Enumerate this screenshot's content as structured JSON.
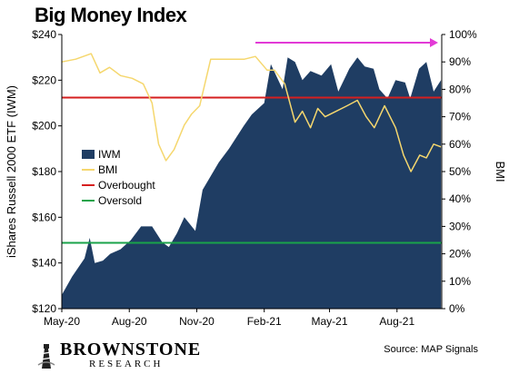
{
  "title": "Big Money Index",
  "brand": {
    "name": "BROWNSTONE",
    "sub": "RESEARCH"
  },
  "source": "Source: MAP Signals",
  "colors": {
    "iwm": "#1f3d63",
    "bmi": "#f5d76e",
    "overbought": "#d61f1f",
    "oversold": "#1aa34a",
    "arrow": "#e23ad6"
  },
  "chart_data": {
    "type": "area",
    "title": "Big Money Index",
    "x_ticks": [
      "May-20",
      "Aug-20",
      "Nov-20",
      "Feb-21",
      "May-21",
      "Aug-21"
    ],
    "x_range": [
      "2020-05-01",
      "2021-10-01"
    ],
    "y_left": {
      "label": "iShares Russell 2000 ETF (IWM)",
      "range": [
        120,
        240
      ],
      "ticks": [
        "$120",
        "$140",
        "$160",
        "$180",
        "$200",
        "$220",
        "$240"
      ]
    },
    "y_right": {
      "label": "BMI",
      "range": [
        0,
        100
      ],
      "ticks": [
        "0%",
        "10%",
        "20%",
        "30%",
        "40%",
        "50%",
        "60%",
        "70%",
        "80%",
        "90%",
        "100%"
      ]
    },
    "legend": {
      "placement": "center-left",
      "entries": [
        "IWM",
        "BMI",
        "Overbought",
        "Oversold"
      ]
    },
    "overbought_pct": 77,
    "oversold_pct": 24,
    "arrow": {
      "from": "2021-01-20",
      "to": "2021-10-01",
      "pct": 97
    },
    "series": [
      {
        "name": "IWM",
        "x": [
          "2020-05-01",
          "2020-05-15",
          "2020-06-01",
          "2020-06-08",
          "2020-06-15",
          "2020-06-26",
          "2020-07-06",
          "2020-07-20",
          "2020-08-03",
          "2020-08-17",
          "2020-09-01",
          "2020-09-15",
          "2020-09-24",
          "2020-10-05",
          "2020-10-15",
          "2020-10-30",
          "2020-11-09",
          "2020-11-20",
          "2020-12-01",
          "2020-12-15",
          "2021-01-04",
          "2021-01-15",
          "2021-02-01",
          "2021-02-10",
          "2021-02-26",
          "2021-03-05",
          "2021-03-15",
          "2021-03-25",
          "2021-04-05",
          "2021-04-20",
          "2021-05-03",
          "2021-05-13",
          "2021-05-28",
          "2021-06-08",
          "2021-06-18",
          "2021-06-30",
          "2021-07-08",
          "2021-07-19",
          "2021-07-30",
          "2021-08-12",
          "2021-08-19",
          "2021-08-31",
          "2021-09-10",
          "2021-09-20",
          "2021-09-30"
        ],
        "values": [
          126,
          134,
          142,
          151,
          140,
          141,
          144,
          146,
          150,
          156,
          156,
          149,
          147,
          153,
          160,
          154,
          172,
          178,
          184,
          190,
          200,
          205,
          210,
          227,
          216,
          230,
          228,
          220,
          224,
          222,
          227,
          215,
          225,
          230,
          226,
          225,
          216,
          212,
          220,
          219,
          212,
          225,
          228,
          215,
          220
        ]
      },
      {
        "name": "BMI",
        "x": [
          "2020-05-01",
          "2020-05-20",
          "2020-06-10",
          "2020-06-22",
          "2020-07-05",
          "2020-07-20",
          "2020-08-05",
          "2020-08-20",
          "2020-09-01",
          "2020-09-10",
          "2020-09-20",
          "2020-10-01",
          "2020-10-15",
          "2020-10-25",
          "2020-11-05",
          "2020-11-20",
          "2020-12-10",
          "2021-01-05",
          "2021-01-20",
          "2021-02-05",
          "2021-02-15",
          "2021-03-01",
          "2021-03-15",
          "2021-03-25",
          "2021-04-05",
          "2021-04-15",
          "2021-04-25",
          "2021-05-10",
          "2021-05-25",
          "2021-06-08",
          "2021-06-20",
          "2021-07-01",
          "2021-07-15",
          "2021-07-30",
          "2021-08-10",
          "2021-08-20",
          "2021-09-01",
          "2021-09-10",
          "2021-09-20",
          "2021-09-30"
        ],
        "values": [
          90,
          91,
          93,
          86,
          88,
          85,
          84,
          82,
          75,
          60,
          54,
          58,
          67,
          71,
          74,
          91,
          91,
          91,
          92,
          87,
          87,
          82,
          68,
          72,
          66,
          73,
          70,
          72,
          74,
          76,
          70,
          66,
          74,
          66,
          56,
          50,
          56,
          55,
          60,
          59
        ]
      }
    ]
  }
}
